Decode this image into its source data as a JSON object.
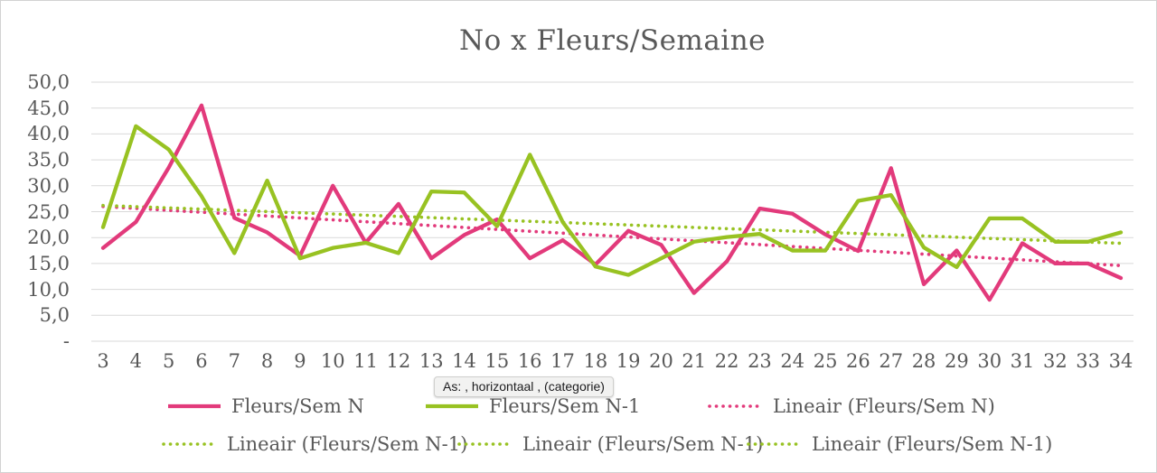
{
  "title": "No x Fleurs/Semaine",
  "tooltip": {
    "text": "As: , horizontaal , (categorie)"
  },
  "colors": {
    "series_n": "#e23a7b",
    "series_n1": "#98c222",
    "text": "#595959",
    "gridline": "#d9d9d9"
  },
  "chart_data": {
    "type": "line",
    "title": "No x Fleurs/Semaine",
    "categories": [
      3,
      4,
      5,
      6,
      7,
      8,
      9,
      10,
      11,
      12,
      13,
      14,
      15,
      16,
      17,
      18,
      19,
      20,
      21,
      22,
      23,
      24,
      25,
      26,
      27,
      28,
      29,
      30,
      31,
      32,
      33,
      34
    ],
    "series": [
      {
        "name": "Fleurs/Sem N",
        "color": "#e23a7b",
        "style": "solid",
        "values": [
          18.0,
          23.0,
          33.5,
          45.5,
          23.8,
          21.0,
          16.5,
          30.0,
          19.0,
          26.5,
          16.0,
          20.5,
          23.5,
          16.0,
          19.5,
          14.8,
          21.3,
          18.6,
          9.3,
          15.4,
          25.6,
          24.6,
          20.6,
          17.4,
          33.4,
          11.0,
          17.5,
          8.0,
          18.9,
          15.0,
          15.0,
          12.2
        ]
      },
      {
        "name": "Fleurs/Sem N-1",
        "color": "#98c222",
        "style": "solid",
        "values": [
          22.0,
          41.5,
          37.0,
          28.0,
          17.0,
          31.0,
          16.0,
          18.0,
          19.0,
          17.0,
          28.9,
          28.7,
          22.2,
          36.0,
          23.0,
          14.4,
          12.8,
          16.0,
          19.2,
          20.1,
          20.7,
          17.5,
          17.5,
          27.1,
          28.2,
          18.1,
          14.3,
          23.7,
          23.7,
          19.2,
          19.2,
          21.0
        ]
      },
      {
        "name": "Lineair (Fleurs/Sem N)",
        "color": "#e23a7b",
        "style": "dotted",
        "trend": true,
        "trend_start": 26.0,
        "trend_end": 14.6
      },
      {
        "name": "Lineair (Fleurs/Sem N-1)",
        "color": "#98c222",
        "style": "dotted",
        "trend": true,
        "trend_start": 26.2,
        "trend_end": 18.9
      }
    ],
    "ylim": [
      0,
      50
    ],
    "ytick_step": 5,
    "ytick_labels": [
      "-",
      "5,0",
      "10,0",
      "15,0",
      "20,0",
      "25,0",
      "30,0",
      "35,0",
      "40,0",
      "45,0",
      "50,0"
    ],
    "grid": true,
    "legend_position": "bottom"
  },
  "legend": {
    "rows": [
      [
        {
          "label": "Fleurs/Sem N",
          "color": "#e23a7b",
          "style": "solid"
        },
        {
          "label": "Fleurs/Sem N-1",
          "color": "#98c222",
          "style": "solid"
        },
        {
          "label": "Lineair (Fleurs/Sem N)",
          "color": "#e23a7b",
          "style": "dotted"
        }
      ],
      [
        {
          "label": "Lineair (Fleurs/Sem N-1)",
          "color": "#98c222",
          "style": "dotted"
        },
        {
          "label": "Lineair (Fleurs/Sem N-1)",
          "color": "#98c222",
          "style": "dotted"
        },
        {
          "label": "Lineair (Fleurs/Sem N-1)",
          "color": "#98c222",
          "style": "dotted"
        }
      ]
    ]
  }
}
